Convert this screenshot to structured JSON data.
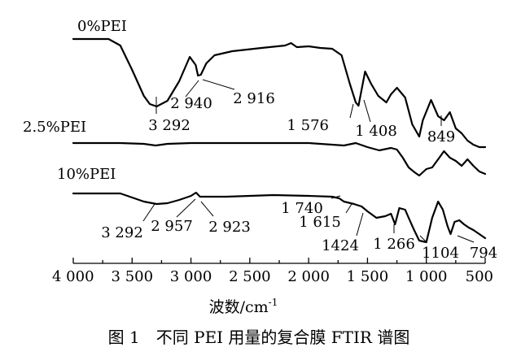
{
  "chart_data": {
    "type": "line",
    "xlabel": "波数/cm",
    "xlabel_sup": "-1",
    "x_reversed": true,
    "xlim": [
      4000,
      500
    ],
    "x_ticks": [
      4000,
      3500,
      3000,
      2500,
      2000,
      1500,
      1000,
      500
    ],
    "x_tick_labels": [
      "4 000",
      "3 500",
      "3 000",
      "2 500",
      "2 000",
      "1 500",
      "1 000",
      "500"
    ],
    "caption": "图 1　不同 PEI 用量的复合膜 FTIR 谱图",
    "series": [
      {
        "name": "0%PEI",
        "x": [
          4000,
          3700,
          3600,
          3500,
          3400,
          3350,
          3292,
          3200,
          3100,
          3010,
          2960,
          2940,
          2916,
          2870,
          2800,
          2650,
          2400,
          2200,
          2150,
          2100,
          2000,
          1900,
          1800,
          1720,
          1650,
          1600,
          1576,
          1520,
          1470,
          1408,
          1340,
          1300,
          1250,
          1180,
          1120,
          1060,
          1030,
          960,
          900,
          849,
          800,
          750,
          700,
          650,
          600,
          550,
          500
        ],
        "y": [
          0,
          0,
          -8,
          -38,
          -70,
          -80,
          -83,
          -76,
          -52,
          -22,
          -32,
          -45,
          -44,
          -30,
          -20,
          -15,
          -11,
          -8,
          -5,
          -10,
          -9,
          -11,
          -12,
          -20,
          -55,
          -78,
          -82,
          -40,
          -55,
          -70,
          -78,
          -68,
          -60,
          -72,
          -105,
          -120,
          -100,
          -75,
          -95,
          -100,
          -90,
          -110,
          -116,
          -125,
          -130,
          -133,
          -133
        ]
      },
      {
        "name": "2.5%PEI",
        "x": [
          4000,
          3600,
          3400,
          3300,
          3200,
          3000,
          2500,
          2000,
          1800,
          1700,
          1600,
          1500,
          1400,
          1300,
          1250,
          1200,
          1150,
          1100,
          1060,
          1000,
          950,
          900,
          850,
          800,
          750,
          700,
          650,
          600,
          550,
          500
        ],
        "y": [
          0,
          0,
          -1,
          -3,
          -1,
          0,
          0,
          0,
          -2,
          -3,
          0,
          -5,
          -9,
          -6,
          -8,
          -18,
          -30,
          -36,
          -40,
          -32,
          -30,
          -20,
          -10,
          -18,
          -22,
          -28,
          -20,
          -28,
          -35,
          -38
        ]
      },
      {
        "name": "10%PEI",
        "x": [
          4000,
          3600,
          3500,
          3400,
          3292,
          3200,
          3100,
          3000,
          2957,
          2923,
          2850,
          2700,
          2500,
          2300,
          2000,
          1800,
          1740,
          1700,
          1615,
          1550,
          1500,
          1424,
          1350,
          1300,
          1266,
          1230,
          1180,
          1150,
          1104,
          1060,
          1000,
          950,
          900,
          860,
          820,
          794,
          760,
          720,
          680,
          640,
          600,
          550,
          500
        ],
        "y": [
          0,
          0,
          -5,
          -10,
          -13,
          -12,
          -8,
          -3,
          1,
          -4,
          -4,
          -4,
          -3,
          -2,
          -3,
          -4,
          -6,
          -10,
          -13,
          -16,
          -22,
          -30,
          -28,
          -25,
          -38,
          -18,
          -20,
          -30,
          -45,
          -58,
          -60,
          -30,
          -10,
          -20,
          -40,
          -50,
          -35,
          -33,
          -38,
          -42,
          -45,
          -50,
          -55
        ]
      }
    ],
    "annotations": [
      {
        "text": "3 292",
        "series": "0%PEI",
        "x": 3292
      },
      {
        "text": "2 940",
        "series": "0%PEI",
        "x": 2940
      },
      {
        "text": "2 916",
        "series": "0%PEI",
        "x": 2916
      },
      {
        "text": "1 576",
        "series": "0%PEI",
        "x": 1576
      },
      {
        "text": "1 408",
        "series": "0%PEI",
        "x": 1408
      },
      {
        "text": "849",
        "series": "0%PEI",
        "x": 849
      },
      {
        "text": "3 292",
        "series": "10%PEI",
        "x": 3292
      },
      {
        "text": "2 957",
        "series": "10%PEI",
        "x": 2957
      },
      {
        "text": "2 923",
        "series": "10%PEI",
        "x": 2923
      },
      {
        "text": "1 740",
        "series": "10%PEI",
        "x": 1740
      },
      {
        "text": "1 615",
        "series": "10%PEI",
        "x": 1615
      },
      {
        "text": "1424",
        "series": "10%PEI",
        "x": 1424
      },
      {
        "text": "1 266",
        "series": "10%PEI",
        "x": 1266
      },
      {
        "text": "1104",
        "series": "10%PEI",
        "x": 1104
      },
      {
        "text": "794",
        "series": "10%PEI",
        "x": 794
      }
    ]
  }
}
